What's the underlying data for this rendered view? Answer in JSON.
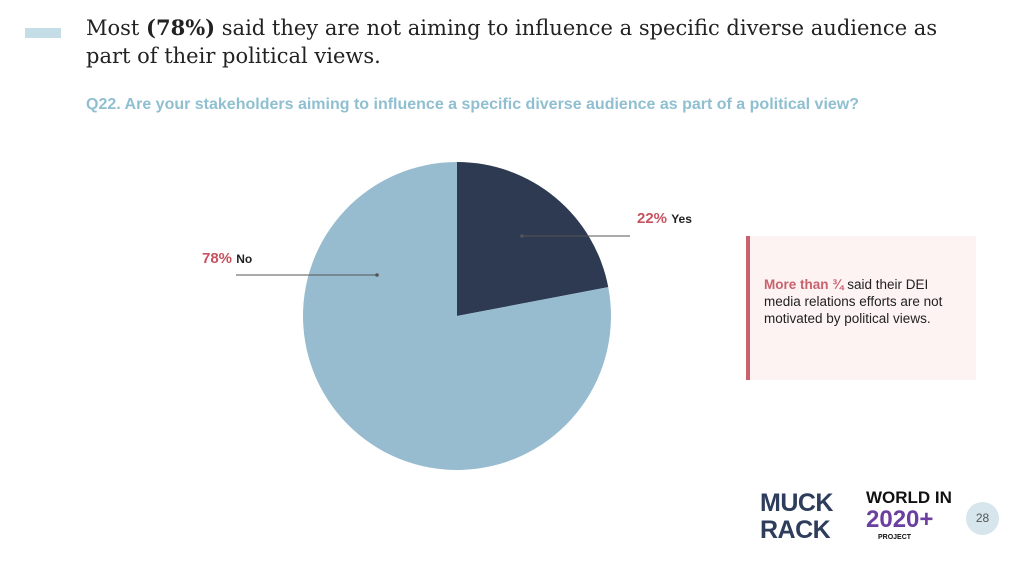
{
  "title": {
    "pre": "Most ",
    "bold": "(78%)",
    "post": "  said they are not aiming to influence a specific diverse audience as part of their political views."
  },
  "question": "Q22.  Are your stakeholders aiming to influence a specific diverse audience as part of a political view?",
  "chart_data": {
    "type": "pie",
    "title": "Q22.  Are your stakeholders aiming to influence a specific diverse audience as part of a political view?",
    "categories": [
      "Yes",
      "No"
    ],
    "values": [
      22,
      78
    ],
    "labels": [
      {
        "pct": "22%",
        "name": "Yes"
      },
      {
        "pct": "78%",
        "name": "No"
      }
    ],
    "colors": [
      "#2d3a52",
      "#97bccf"
    ]
  },
  "callout": {
    "highlight": "More than ¾",
    "text": " said their DEI media relations efforts are not motivated by political views."
  },
  "logos": {
    "muck": "MUCK",
    "rack": "RACK",
    "world": "WORLD IN",
    "year": "2020+",
    "project": "PROJECT"
  },
  "page_number": "28"
}
